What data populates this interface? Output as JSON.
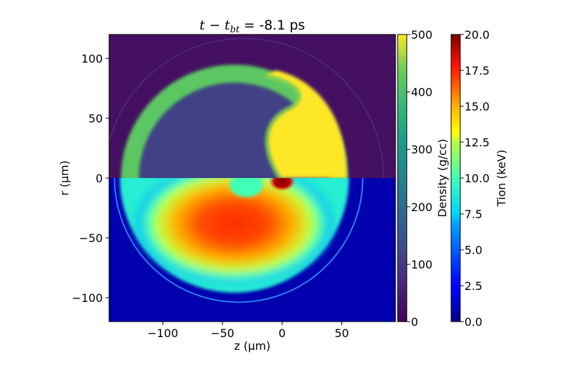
{
  "chart_data": {
    "type": "heatmap",
    "title": {
      "math": "t − t",
      "subscript": "bt",
      "value": " = -8.1 ps"
    },
    "xlabel": "z (μm)",
    "ylabel": "r (μm)",
    "xlim": [
      -145,
      95
    ],
    "ylim": [
      -120,
      120
    ],
    "xticks": [
      {
        "value": -100,
        "label": "−100"
      },
      {
        "value": -50,
        "label": "−50"
      },
      {
        "value": 0,
        "label": "0"
      },
      {
        "value": 50,
        "label": "50"
      }
    ],
    "yticks": [
      {
        "value": 100,
        "label": "100"
      },
      {
        "value": 50,
        "label": "50"
      },
      {
        "value": 0,
        "label": "0"
      },
      {
        "value": -50,
        "label": "−50"
      },
      {
        "value": -100,
        "label": "−100"
      }
    ],
    "top_half": {
      "quantity": "density",
      "colormap": "viridis",
      "background": 25,
      "shell": {
        "center_z": -40,
        "outer_radius": 95,
        "inner_radius": 80,
        "value": 420
      },
      "dense_region_value": 500,
      "interior_value": 110
    },
    "bottom_half": {
      "quantity": "ion temperature",
      "colormap": "jet",
      "background": 0.8,
      "hot_region": {
        "center_z": -40,
        "center_r": -38,
        "value": 16.0
      },
      "hot_spot": {
        "z": 0,
        "r": -3,
        "value": 20.0
      }
    },
    "colorbars": [
      {
        "name": "density",
        "label": "Density (g/cc)",
        "colormap": "viridis",
        "range": [
          0,
          500
        ],
        "ticks": [
          {
            "value": 500,
            "label": "500"
          },
          {
            "value": 400,
            "label": "400"
          },
          {
            "value": 300,
            "label": "300"
          },
          {
            "value": 200,
            "label": "200"
          },
          {
            "value": 100,
            "label": "100"
          },
          {
            "value": 0,
            "label": "0"
          }
        ]
      },
      {
        "name": "tion",
        "label": "Tion (keV)",
        "colormap": "jet",
        "range": [
          0,
          20
        ],
        "ticks": [
          {
            "value": 20.0,
            "label": "20.0"
          },
          {
            "value": 17.5,
            "label": "17.5"
          },
          {
            "value": 15.0,
            "label": "15.0"
          },
          {
            "value": 12.5,
            "label": "12.5"
          },
          {
            "value": 10.0,
            "label": "10.0"
          },
          {
            "value": 7.5,
            "label": "7.5"
          },
          {
            "value": 5.0,
            "label": "5.0"
          },
          {
            "value": 2.5,
            "label": "2.5"
          },
          {
            "value": 0.0,
            "label": "0.0"
          }
        ]
      }
    ]
  }
}
